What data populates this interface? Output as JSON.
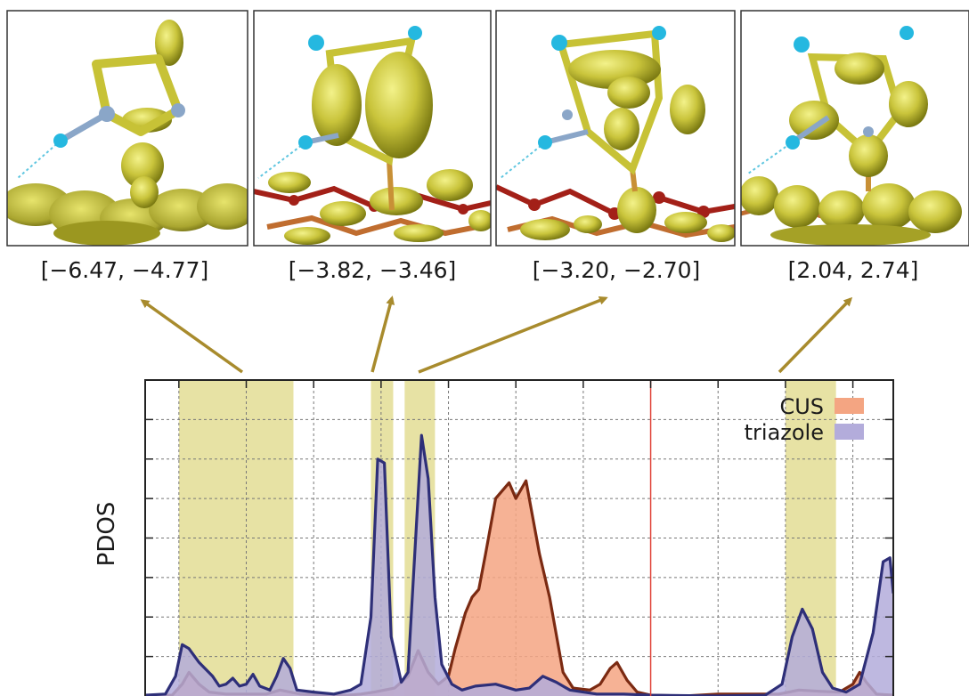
{
  "chart_data": {
    "type": "area",
    "ylabel": "PDOS",
    "xlabel": "",
    "fermi_level": 0,
    "xlim": [
      -7.5,
      3.6
    ],
    "ylim": [
      0,
      8
    ],
    "grid": true,
    "legend_position": "top-right",
    "highlight_ranges": [
      [
        -7.0,
        -5.3
      ],
      [
        -4.15,
        -3.82
      ],
      [
        -3.65,
        -3.2
      ],
      [
        2.0,
        2.75
      ]
    ],
    "panels": [
      {
        "label": "[−6.47, −4.77]",
        "range": [
          -6.47,
          -4.77
        ]
      },
      {
        "label": "[−3.82, −3.46]",
        "range": [
          -3.82,
          -3.46
        ]
      },
      {
        "label": "[−3.20, −2.70]",
        "range": [
          -3.2,
          -2.7
        ]
      },
      {
        "label": "[2.04, 2.74]",
        "range": [
          2.04,
          2.74
        ]
      }
    ],
    "series": [
      {
        "name": "CUS",
        "color": "#f4a582",
        "line_color": "#7b2a12",
        "points": [
          [
            -7.5,
            0.02
          ],
          [
            -7.1,
            0.02
          ],
          [
            -6.95,
            0.3
          ],
          [
            -6.85,
            0.6
          ],
          [
            -6.7,
            0.3
          ],
          [
            -6.55,
            0.1
          ],
          [
            -6.3,
            0.05
          ],
          [
            -6.0,
            0.05
          ],
          [
            -5.7,
            0.05
          ],
          [
            -5.5,
            0.15
          ],
          [
            -5.35,
            0.1
          ],
          [
            -5.2,
            0.05
          ],
          [
            -4.8,
            0.02
          ],
          [
            -4.5,
            0.02
          ],
          [
            -4.3,
            0.05
          ],
          [
            -4.1,
            0.1
          ],
          [
            -3.95,
            0.15
          ],
          [
            -3.8,
            0.2
          ],
          [
            -3.6,
            0.5
          ],
          [
            -3.45,
            1.15
          ],
          [
            -3.3,
            0.6
          ],
          [
            -3.15,
            0.3
          ],
          [
            -3.0,
            0.5
          ],
          [
            -2.9,
            1.2
          ],
          [
            -2.75,
            2.1
          ],
          [
            -2.65,
            2.5
          ],
          [
            -2.55,
            2.7
          ],
          [
            -2.45,
            3.6
          ],
          [
            -2.3,
            5.0
          ],
          [
            -2.1,
            5.4
          ],
          [
            -2.0,
            5.0
          ],
          [
            -1.85,
            5.45
          ],
          [
            -1.65,
            3.6
          ],
          [
            -1.5,
            2.5
          ],
          [
            -1.3,
            0.6
          ],
          [
            -1.15,
            0.2
          ],
          [
            -0.9,
            0.15
          ],
          [
            -0.75,
            0.3
          ],
          [
            -0.6,
            0.7
          ],
          [
            -0.5,
            0.85
          ],
          [
            -0.35,
            0.4
          ],
          [
            -0.2,
            0.1
          ],
          [
            0.0,
            0.02
          ],
          [
            0.5,
            0.0
          ],
          [
            1.0,
            0.05
          ],
          [
            1.5,
            0.05
          ],
          [
            1.9,
            0.05
          ],
          [
            2.2,
            0.15
          ],
          [
            2.5,
            0.12
          ],
          [
            2.8,
            0.1
          ],
          [
            3.0,
            0.3
          ],
          [
            3.1,
            0.6
          ],
          [
            3.2,
            0.35
          ],
          [
            3.35,
            0.05
          ],
          [
            3.6,
            0.02
          ]
        ]
      },
      {
        "name": "triazole",
        "color": "#b3acdb",
        "line_color": "#2e2f78",
        "points": [
          [
            -7.5,
            0.02
          ],
          [
            -7.2,
            0.05
          ],
          [
            -7.05,
            0.5
          ],
          [
            -6.95,
            1.3
          ],
          [
            -6.85,
            1.2
          ],
          [
            -6.7,
            0.85
          ],
          [
            -6.5,
            0.5
          ],
          [
            -6.4,
            0.25
          ],
          [
            -6.3,
            0.3
          ],
          [
            -6.2,
            0.45
          ],
          [
            -6.1,
            0.25
          ],
          [
            -6.0,
            0.3
          ],
          [
            -5.9,
            0.55
          ],
          [
            -5.8,
            0.25
          ],
          [
            -5.65,
            0.15
          ],
          [
            -5.55,
            0.5
          ],
          [
            -5.45,
            0.95
          ],
          [
            -5.35,
            0.7
          ],
          [
            -5.25,
            0.15
          ],
          [
            -5.0,
            0.1
          ],
          [
            -4.7,
            0.05
          ],
          [
            -4.45,
            0.15
          ],
          [
            -4.3,
            0.3
          ],
          [
            -4.15,
            2.0
          ],
          [
            -4.05,
            6.0
          ],
          [
            -3.95,
            5.9
          ],
          [
            -3.85,
            1.5
          ],
          [
            -3.7,
            0.35
          ],
          [
            -3.6,
            0.6
          ],
          [
            -3.5,
            3.6
          ],
          [
            -3.4,
            6.6
          ],
          [
            -3.3,
            5.5
          ],
          [
            -3.2,
            2.5
          ],
          [
            -3.1,
            0.8
          ],
          [
            -2.95,
            0.3
          ],
          [
            -2.8,
            0.15
          ],
          [
            -2.6,
            0.25
          ],
          [
            -2.3,
            0.3
          ],
          [
            -2.0,
            0.15
          ],
          [
            -1.8,
            0.2
          ],
          [
            -1.6,
            0.5
          ],
          [
            -1.4,
            0.35
          ],
          [
            -1.2,
            0.15
          ],
          [
            -0.8,
            0.05
          ],
          [
            -0.4,
            0.05
          ],
          [
            0.0,
            0.02
          ],
          [
            1.0,
            0.0
          ],
          [
            1.7,
            0.02
          ],
          [
            1.95,
            0.3
          ],
          [
            2.1,
            1.5
          ],
          [
            2.25,
            2.2
          ],
          [
            2.4,
            1.7
          ],
          [
            2.55,
            0.6
          ],
          [
            2.7,
            0.2
          ],
          [
            2.9,
            0.1
          ],
          [
            3.1,
            0.3
          ],
          [
            3.3,
            1.6
          ],
          [
            3.45,
            3.4
          ],
          [
            3.55,
            3.5
          ],
          [
            3.6,
            2.6
          ]
        ]
      }
    ]
  }
}
